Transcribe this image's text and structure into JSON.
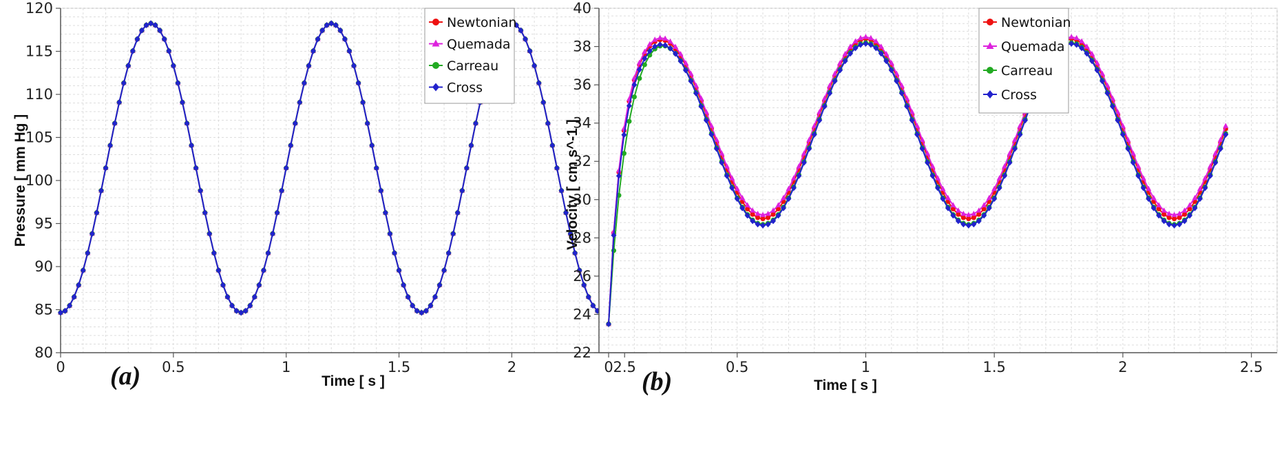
{
  "chart_data": [
    {
      "id": "a",
      "type": "line",
      "panel_label": "(a)",
      "xlabel": "Time [ s ]",
      "ylabel": "Pressure [ mm Hg ]",
      "xlim": [
        0,
        2.6
      ],
      "ylim": [
        80,
        120
      ],
      "xticks": [
        0,
        0.5,
        1,
        1.5,
        2,
        2.5
      ],
      "xtick_labels": [
        "0",
        "0.5",
        "1",
        "1.5",
        "2",
        "2.5"
      ],
      "yticks": [
        80,
        85,
        90,
        95,
        100,
        105,
        110,
        115,
        120
      ],
      "ytick_labels": [
        "80",
        "85",
        "90",
        "95",
        "100",
        "105",
        "110",
        "115",
        "120"
      ],
      "legend_position": "top-right",
      "grid": true,
      "series": [
        {
          "name": "Newtonian",
          "color": "#ee1111",
          "marker": "circle",
          "waveform": {
            "kind": "cos",
            "t0": 0,
            "t1": 2.4,
            "dt": 0.02,
            "mean": 101.45,
            "amp": 16.8,
            "period": 0.8,
            "peak_t": 0.4
          }
        },
        {
          "name": "Quemada",
          "color": "#dd22dd",
          "marker": "triangle",
          "waveform": {
            "kind": "cos",
            "t0": 0,
            "t1": 2.4,
            "dt": 0.02,
            "mean": 101.45,
            "amp": 16.8,
            "period": 0.8,
            "peak_t": 0.4
          }
        },
        {
          "name": "Carreau",
          "color": "#22aa22",
          "marker": "circle",
          "waveform": {
            "kind": "cos",
            "t0": 0,
            "t1": 2.4,
            "dt": 0.02,
            "mean": 101.45,
            "amp": 16.8,
            "period": 0.8,
            "peak_t": 0.4
          }
        },
        {
          "name": "Cross",
          "color": "#2222cc",
          "marker": "diamond",
          "waveform": {
            "kind": "cos",
            "t0": 0,
            "t1": 2.4,
            "dt": 0.02,
            "mean": 101.45,
            "amp": 16.8,
            "period": 0.8,
            "peak_t": 0.4
          }
        }
      ]
    },
    {
      "id": "b",
      "type": "line",
      "panel_label": "(b)",
      "xlabel": "Time [ s ]",
      "ylabel": "Velocity [ cm s^-1 ]",
      "xlim": [
        0,
        2.6
      ],
      "ylim": [
        22,
        40
      ],
      "xticks": [
        0,
        0.5,
        1,
        1.5,
        2,
        2.5
      ],
      "xtick_labels": [
        "0",
        "0.5",
        "1",
        "1.5",
        "2",
        "2.5"
      ],
      "yticks": [
        22,
        24,
        26,
        28,
        30,
        32,
        34,
        36,
        38,
        40
      ],
      "ytick_labels": [
        "22",
        "24",
        "26",
        "28",
        "30",
        "32",
        "34",
        "36",
        "38",
        "40"
      ],
      "legend_position": "top-right",
      "grid": true,
      "series": [
        {
          "name": "Newtonian",
          "color": "#ee1111",
          "marker": "circle",
          "waveform": {
            "kind": "cos-startup",
            "t0": 0,
            "t1": 2.4,
            "dt": 0.02,
            "mean": 33.7,
            "amp": 4.7,
            "period": 0.8,
            "peak_t": 0.2,
            "start": 23.5,
            "tau": 0.035
          }
        },
        {
          "name": "Quemada",
          "color": "#dd22dd",
          "marker": "triangle",
          "waveform": {
            "kind": "cos-startup",
            "t0": 0,
            "t1": 2.4,
            "dt": 0.02,
            "mean": 33.85,
            "amp": 4.65,
            "period": 0.8,
            "peak_t": 0.2,
            "start": 23.5,
            "tau": 0.035
          }
        },
        {
          "name": "Carreau",
          "color": "#22aa22",
          "marker": "circle",
          "waveform": {
            "kind": "cos-startup",
            "t0": 0,
            "t1": 2.4,
            "dt": 0.02,
            "mean": 33.45,
            "amp": 4.75,
            "period": 0.8,
            "peak_t": 0.2,
            "start": 23.5,
            "tau": 0.045
          }
        },
        {
          "name": "Cross",
          "color": "#2222cc",
          "marker": "diamond",
          "waveform": {
            "kind": "cos-startup",
            "t0": 0,
            "t1": 2.4,
            "dt": 0.02,
            "mean": 33.4,
            "amp": 4.75,
            "period": 0.8,
            "peak_t": 0.2,
            "start": 23.5,
            "tau": 0.035
          }
        }
      ]
    }
  ]
}
